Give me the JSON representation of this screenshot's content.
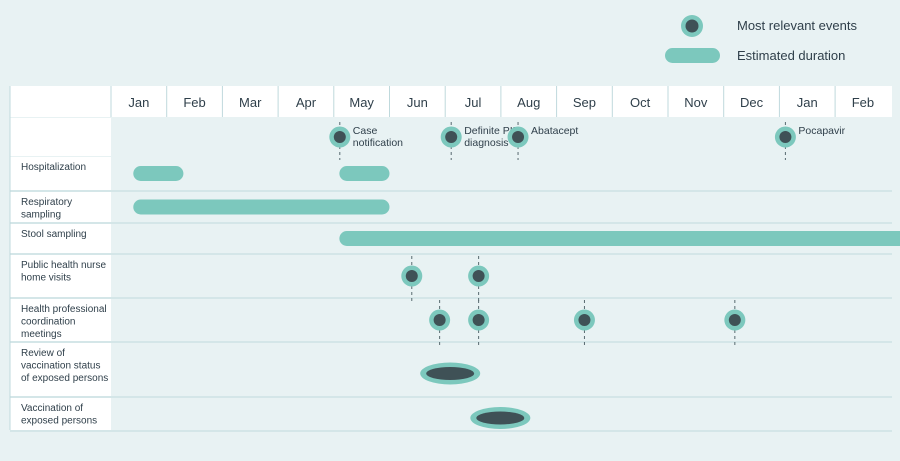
{
  "legend": {
    "events_label": "Most relevant events",
    "duration_label": "Estimated duration"
  },
  "colors": {
    "background": "#e8f2f3",
    "panel": "#ffffff",
    "accent": "#7cc8bd",
    "dot": "#3f5156",
    "grid": "#bfd9dc",
    "text": "#2f3f4a"
  },
  "months": [
    "Jan",
    "Feb",
    "Mar",
    "Apr",
    "May",
    "Jun",
    "Jul",
    "Aug",
    "Sep",
    "Oct",
    "Nov",
    "Dec",
    "Jan",
    "Feb"
  ],
  "milestones": [
    {
      "label": [
        "Case",
        "notification"
      ],
      "month": 4.0
    },
    {
      "label": [
        "Definite PID",
        "diagnosis"
      ],
      "month": 6.0
    },
    {
      "label": [
        "Abatacept"
      ],
      "month": 7.2
    },
    {
      "label": [
        "Pocapavir"
      ],
      "month": 12.0
    }
  ],
  "rows": [
    {
      "label": [
        "Hospitalization"
      ],
      "bars": [
        [
          0.4,
          1.3
        ],
        [
          4.1,
          5.0
        ]
      ],
      "events": [],
      "ellipses": []
    },
    {
      "label": [
        "Respiratory",
        "sampling"
      ],
      "bars": [
        [
          0.4,
          5.0
        ]
      ],
      "events": [],
      "ellipses": []
    },
    {
      "label": [
        "Stool sampling"
      ],
      "bars": [
        [
          4.1,
          14.5
        ]
      ],
      "events": [],
      "ellipses": []
    },
    {
      "label": [
        "Public health nurse",
        "home visits"
      ],
      "bars": [],
      "events": [
        5.4,
        6.6
      ],
      "ellipses": []
    },
    {
      "label": [
        "Health professional",
        "coordination",
        "meetings"
      ],
      "bars": [],
      "events": [
        5.9,
        6.6,
        8.5,
        11.2
      ],
      "ellipses": []
    },
    {
      "label": [
        "Review of",
        "vaccination status",
        "of exposed persons"
      ],
      "bars": [],
      "events": [],
      "ellipses": [
        6.0
      ]
    },
    {
      "label": [
        "Vaccination  of",
        "exposed persons"
      ],
      "bars": [],
      "events": [],
      "ellipses": [
        6.9
      ]
    }
  ]
}
